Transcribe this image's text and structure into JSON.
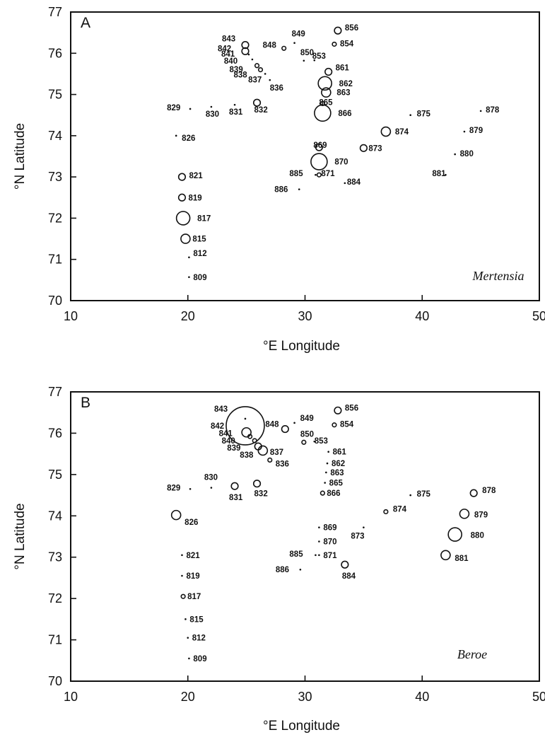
{
  "chart_data": [
    {
      "type": "scatter",
      "panel_label": "A",
      "species": "Mertensia",
      "xlabel": "°E Longitude",
      "ylabel": "°N Latitude",
      "xlim": [
        10,
        50
      ],
      "ylim": [
        70,
        77
      ],
      "xticks": [
        10,
        20,
        30,
        40,
        50
      ],
      "yticks": [
        70,
        71,
        72,
        73,
        74,
        75,
        76,
        77
      ],
      "grid": false,
      "stations": [
        {
          "id": "809",
          "lon": 20.1,
          "lat": 70.57,
          "size": 0
        },
        {
          "id": "812",
          "lon": 20.1,
          "lat": 71.05,
          "size": 0
        },
        {
          "id": "815",
          "lon": 19.8,
          "lat": 71.5,
          "size": 3
        },
        {
          "id": "817",
          "lon": 19.6,
          "lat": 72.0,
          "size": 4
        },
        {
          "id": "819",
          "lon": 19.5,
          "lat": 72.5,
          "size": 2
        },
        {
          "id": "821",
          "lon": 19.5,
          "lat": 73.0,
          "size": 2
        },
        {
          "id": "826",
          "lon": 19.0,
          "lat": 74.0,
          "size": 0
        },
        {
          "id": "829",
          "lon": 20.2,
          "lat": 74.65,
          "size": 0
        },
        {
          "id": "830",
          "lon": 22.0,
          "lat": 74.7,
          "size": 0
        },
        {
          "id": "831",
          "lon": 24.0,
          "lat": 74.75,
          "size": 0
        },
        {
          "id": "832",
          "lon": 25.9,
          "lat": 74.8,
          "size": 2
        },
        {
          "id": "836",
          "lon": 27.0,
          "lat": 75.35,
          "size": 0
        },
        {
          "id": "837",
          "lon": 26.6,
          "lat": 75.5,
          "size": 0
        },
        {
          "id": "838",
          "lon": 26.2,
          "lat": 75.6,
          "size": 1
        },
        {
          "id": "839",
          "lon": 25.9,
          "lat": 75.7,
          "size": 1
        },
        {
          "id": "840",
          "lon": 25.5,
          "lat": 75.85,
          "size": 0
        },
        {
          "id": "841",
          "lon": 25.2,
          "lat": 75.97,
          "size": 0
        },
        {
          "id": "842",
          "lon": 24.9,
          "lat": 76.05,
          "size": 2
        },
        {
          "id": "843",
          "lon": 24.9,
          "lat": 76.2,
          "size": 2
        },
        {
          "id": "848",
          "lon": 28.2,
          "lat": 76.12,
          "size": 1
        },
        {
          "id": "849",
          "lon": 29.1,
          "lat": 76.25,
          "size": 0
        },
        {
          "id": "850",
          "lon": 29.9,
          "lat": 75.82,
          "size": 0
        },
        {
          "id": "853",
          "lon": 30.8,
          "lat": 75.83,
          "size": 0
        },
        {
          "id": "854",
          "lon": 32.5,
          "lat": 76.22,
          "size": 1
        },
        {
          "id": "856",
          "lon": 32.8,
          "lat": 76.55,
          "size": 2
        },
        {
          "id": "861",
          "lon": 32.0,
          "lat": 75.55,
          "size": 2
        },
        {
          "id": "862",
          "lon": 31.7,
          "lat": 75.27,
          "size": 4
        },
        {
          "id": "863",
          "lon": 31.8,
          "lat": 75.05,
          "size": 3
        },
        {
          "id": "865",
          "lon": 31.5,
          "lat": 74.78,
          "size": 1
        },
        {
          "id": "866",
          "lon": 31.5,
          "lat": 74.55,
          "size": 5
        },
        {
          "id": "869",
          "lon": 31.2,
          "lat": 73.72,
          "size": 2
        },
        {
          "id": "870",
          "lon": 31.2,
          "lat": 73.37,
          "size": 5
        },
        {
          "id": "871",
          "lon": 31.2,
          "lat": 73.05,
          "size": 1
        },
        {
          "id": "873",
          "lon": 35.0,
          "lat": 73.7,
          "size": 2
        },
        {
          "id": "874",
          "lon": 36.9,
          "lat": 74.1,
          "size": 3
        },
        {
          "id": "875",
          "lon": 39.0,
          "lat": 74.5,
          "size": 0
        },
        {
          "id": "878",
          "lon": 45.0,
          "lat": 74.6,
          "size": 0
        },
        {
          "id": "879",
          "lon": 43.6,
          "lat": 74.1,
          "size": 0
        },
        {
          "id": "880",
          "lon": 42.8,
          "lat": 73.55,
          "size": 0
        },
        {
          "id": "881",
          "lon": 42.0,
          "lat": 73.05,
          "size": 0
        },
        {
          "id": "884",
          "lon": 33.4,
          "lat": 72.85,
          "size": 0
        },
        {
          "id": "885",
          "lon": 30.9,
          "lat": 73.05,
          "size": 0
        },
        {
          "id": "886",
          "lon": 29.5,
          "lat": 72.7,
          "size": 0
        }
      ]
    },
    {
      "type": "scatter",
      "panel_label": "B",
      "species": "Beroe",
      "xlabel": "°E Longitude",
      "ylabel": "°N Latitude",
      "xlim": [
        10,
        50
      ],
      "ylim": [
        70,
        77
      ],
      "xticks": [
        10,
        20,
        30,
        40,
        50
      ],
      "yticks": [
        70,
        71,
        72,
        73,
        74,
        75,
        76,
        77
      ],
      "grid": false,
      "stations": [
        {
          "id": "809",
          "lon": 20.1,
          "lat": 70.55,
          "size": 0
        },
        {
          "id": "812",
          "lon": 20.0,
          "lat": 71.05,
          "size": 0
        },
        {
          "id": "815",
          "lon": 19.8,
          "lat": 71.5,
          "size": 0
        },
        {
          "id": "817",
          "lon": 19.6,
          "lat": 72.05,
          "size": 1
        },
        {
          "id": "819",
          "lon": 19.5,
          "lat": 72.55,
          "size": 0
        },
        {
          "id": "821",
          "lon": 19.5,
          "lat": 73.05,
          "size": 0
        },
        {
          "id": "826",
          "lon": 19.0,
          "lat": 74.02,
          "size": 3
        },
        {
          "id": "829",
          "lon": 20.2,
          "lat": 74.65,
          "size": 0
        },
        {
          "id": "830",
          "lon": 22.0,
          "lat": 74.68,
          "size": 0
        },
        {
          "id": "831",
          "lon": 24.0,
          "lat": 74.72,
          "size": 2
        },
        {
          "id": "832",
          "lon": 25.9,
          "lat": 74.78,
          "size": 2
        },
        {
          "id": "836",
          "lon": 27.0,
          "lat": 75.35,
          "size": 1
        },
        {
          "id": "837",
          "lon": 26.4,
          "lat": 75.58,
          "size": 3
        },
        {
          "id": "838",
          "lon": 26.0,
          "lat": 75.68,
          "size": 2
        },
        {
          "id": "839",
          "lon": 25.7,
          "lat": 75.82,
          "size": 1
        },
        {
          "id": "840",
          "lon": 25.3,
          "lat": 75.92,
          "size": 1
        },
        {
          "id": "841",
          "lon": 25.0,
          "lat": 76.02,
          "size": 3
        },
        {
          "id": "842",
          "lon": 24.9,
          "lat": 76.18,
          "size": 6
        },
        {
          "id": "843",
          "lon": 24.9,
          "lat": 76.35,
          "size": 0
        },
        {
          "id": "848",
          "lon": 28.3,
          "lat": 76.1,
          "size": 2
        },
        {
          "id": "849",
          "lon": 29.1,
          "lat": 76.25,
          "size": 0
        },
        {
          "id": "850",
          "lon": 29.9,
          "lat": 75.78,
          "size": 1
        },
        {
          "id": "853",
          "lon": 30.8,
          "lat": 75.8,
          "size": 0
        },
        {
          "id": "854",
          "lon": 32.5,
          "lat": 76.2,
          "size": 1
        },
        {
          "id": "856",
          "lon": 32.8,
          "lat": 76.55,
          "size": 2
        },
        {
          "id": "861",
          "lon": 32.0,
          "lat": 75.55,
          "size": 0
        },
        {
          "id": "862",
          "lon": 31.9,
          "lat": 75.27,
          "size": 0
        },
        {
          "id": "863",
          "lon": 31.8,
          "lat": 75.05,
          "size": 0
        },
        {
          "id": "865",
          "lon": 31.7,
          "lat": 74.8,
          "size": 0
        },
        {
          "id": "866",
          "lon": 31.5,
          "lat": 74.55,
          "size": 1
        },
        {
          "id": "869",
          "lon": 31.2,
          "lat": 73.72,
          "size": 0
        },
        {
          "id": "870",
          "lon": 31.2,
          "lat": 73.38,
          "size": 0
        },
        {
          "id": "871",
          "lon": 31.2,
          "lat": 73.05,
          "size": 0
        },
        {
          "id": "873",
          "lon": 35.0,
          "lat": 73.72,
          "size": 0
        },
        {
          "id": "874",
          "lon": 36.9,
          "lat": 74.1,
          "size": 1
        },
        {
          "id": "875",
          "lon": 39.0,
          "lat": 74.5,
          "size": 0
        },
        {
          "id": "878",
          "lon": 44.4,
          "lat": 74.55,
          "size": 2
        },
        {
          "id": "879",
          "lon": 43.6,
          "lat": 74.05,
          "size": 3
        },
        {
          "id": "880",
          "lon": 42.8,
          "lat": 73.55,
          "size": 4
        },
        {
          "id": "881",
          "lon": 42.0,
          "lat": 73.05,
          "size": 3
        },
        {
          "id": "884",
          "lon": 33.4,
          "lat": 72.82,
          "size": 2
        },
        {
          "id": "885",
          "lon": 30.9,
          "lat": 73.05,
          "size": 0
        },
        {
          "id": "886",
          "lon": 29.6,
          "lat": 72.7,
          "size": 0
        }
      ]
    }
  ],
  "labels_a": {
    "812": [
      6,
      -2
    ],
    "815": [
      10,
      4
    ],
    "817": [
      20,
      4
    ],
    "819": [
      9,
      4
    ],
    "821": [
      10,
      2
    ],
    "826": [
      8,
      7
    ],
    "829": [
      -33,
      2
    ],
    "830": [
      -8,
      14
    ],
    "831": [
      -8,
      14
    ],
    "832": [
      -4,
      14
    ],
    "836": [
      0,
      15
    ],
    "837": [
      -24,
      12
    ],
    "838": [
      -38,
      11
    ],
    "839": [
      -39,
      9
    ],
    "840": [
      -40,
      6
    ],
    "841": [
      -39,
      3
    ],
    "842": [
      -39,
      0
    ],
    "843": [
      -33,
      -5
    ],
    "848": [
      -30,
      -1
    ],
    "849": [
      -4,
      -9
    ],
    "850": [
      -5,
      -8
    ],
    "853": [
      -3,
      -2
    ],
    "854": [
      8,
      3
    ],
    "856": [
      10,
      0
    ],
    "861": [
      10,
      -2
    ],
    "862": [
      20,
      4
    ],
    "863": [
      15,
      4
    ],
    "865": [
      -5,
      2
    ],
    "866": [
      22,
      4
    ],
    "869": [
      -8,
      1
    ],
    "870": [
      22,
      4
    ],
    "871": [
      3,
      2
    ],
    "873": [
      7,
      4
    ],
    "874": [
      13,
      4
    ],
    "875": [
      9,
      2
    ],
    "878": [
      7,
      2
    ],
    "879": [
      7,
      2
    ],
    "880": [
      7,
      3
    ],
    "881": [
      -19,
      2
    ],
    "884": [
      3,
      2
    ],
    "885": [
      -37,
      2
    ],
    "886": [
      -35,
      4
    ],
    "809": [
      6,
      4
    ]
  },
  "labels_b": {
    "809": [
      6,
      4
    ],
    "812": [
      6,
      4
    ],
    "815": [
      6,
      4
    ],
    "817": [
      6,
      4
    ],
    "819": [
      6,
      4
    ],
    "821": [
      6,
      4
    ],
    "826": [
      12,
      14
    ],
    "829": [
      -33,
      2
    ],
    "830": [
      -10,
      -11
    ],
    "831": [
      -8,
      20
    ],
    "832": [
      -4,
      18
    ],
    "836": [
      8,
      9
    ],
    "837": [
      10,
      6
    ],
    "838": [
      -26,
      16
    ],
    "839": [
      -39,
      14
    ],
    "840": [
      -40,
      10
    ],
    "841": [
      -39,
      5
    ],
    "842": [
      -49,
      4
    ],
    "843": [
      -44,
      -10
    ],
    "848": [
      -28,
      -3
    ],
    "849": [
      8,
      -3
    ],
    "850": [
      -5,
      -8
    ],
    "853": [
      0,
      3
    ],
    "854": [
      8,
      3
    ],
    "856": [
      10,
      0
    ],
    "861": [
      6,
      4
    ],
    "862": [
      6,
      4
    ],
    "863": [
      6,
      4
    ],
    "865": [
      6,
      4
    ],
    "866": [
      6,
      4
    ],
    "869": [
      6,
      4
    ],
    "870": [
      6,
      4
    ],
    "871": [
      6,
      4
    ],
    "873": [
      -18,
      16
    ],
    "874": [
      10,
      0
    ],
    "875": [
      9,
      2
    ],
    "878": [
      12,
      0
    ],
    "879": [
      14,
      5
    ],
    "880": [
      22,
      5
    ],
    "881": [
      13,
      8
    ],
    "884": [
      -4,
      20
    ],
    "885": [
      -37,
      2
    ],
    "886": [
      -35,
      4
    ]
  }
}
